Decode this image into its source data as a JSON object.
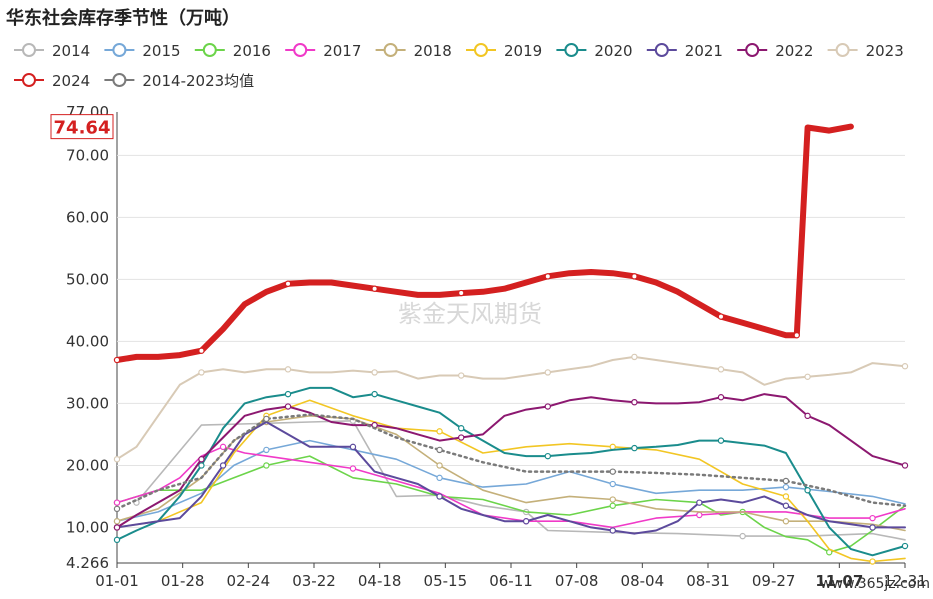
{
  "title": "华东社会库存季节性（万吨）",
  "watermark": "紫金天风期货",
  "site": "www.365jz.com",
  "chart_data": {
    "type": "line",
    "title": "华东社会库存季节性（万吨）",
    "x_ticks": [
      "01-01",
      "01-28",
      "02-24",
      "03-22",
      "04-18",
      "05-15",
      "06-11",
      "07-08",
      "08-04",
      "08-31",
      "09-27",
      "11-07",
      "12-31"
    ],
    "y_ticks": [
      "4.266",
      "10.00",
      "20.00",
      "30.00",
      "40.00",
      "50.00",
      "60.00",
      "70.00"
    ],
    "y_top_clipped_label": "77.00",
    "ylim": [
      4.266,
      77.0
    ],
    "tooltip": {
      "x_label": "11-07",
      "y_label": "74.64",
      "y_value": 74.64
    },
    "legend_position": "top",
    "grid": true,
    "series": [
      {
        "name": "2014",
        "color": "#b8b8b8",
        "width": 1.6,
        "x": [
          10,
          40,
          70,
          90,
          110,
          130,
          150,
          170,
          190,
          200,
          230,
          260,
          290,
          320,
          350,
          365
        ],
        "y": [
          14,
          26.5,
          26.8,
          27,
          27.2,
          15,
          15.2,
          13.5,
          12.5,
          9.5,
          9.2,
          9,
          8.6,
          8.6,
          9,
          8
        ]
      },
      {
        "name": "2015",
        "color": "#76a8d8",
        "width": 1.6,
        "x": [
          1,
          20,
          40,
          55,
          70,
          90,
          110,
          130,
          150,
          170,
          190,
          210,
          230,
          250,
          270,
          290,
          310,
          330,
          350,
          365
        ],
        "y": [
          11,
          12.5,
          15.5,
          20,
          22.5,
          24,
          22.5,
          21,
          18,
          16.5,
          17,
          19,
          17,
          15.5,
          16,
          16,
          16.5,
          15.8,
          15,
          13.8
        ]
      },
      {
        "name": "2016",
        "color": "#6cd44a",
        "width": 1.6,
        "x": [
          1,
          20,
          40,
          55,
          70,
          90,
          110,
          130,
          150,
          170,
          190,
          210,
          230,
          250,
          270,
          280,
          290,
          300,
          310,
          320,
          330,
          340,
          350,
          365
        ],
        "y": [
          14,
          16,
          16,
          18,
          20,
          21.5,
          18,
          17,
          15,
          14.5,
          12.5,
          12,
          13.5,
          14.5,
          14,
          12,
          12.5,
          10,
          8.5,
          8,
          6,
          7,
          9.5,
          13.5
        ]
      },
      {
        "name": "2017",
        "color": "#f03ac8",
        "width": 1.6,
        "x": [
          1,
          20,
          30,
          40,
          50,
          60,
          70,
          90,
          110,
          130,
          150,
          170,
          190,
          210,
          230,
          250,
          270,
          290,
          310,
          330,
          350,
          365
        ],
        "y": [
          14,
          16,
          18,
          21.5,
          23,
          22,
          21.5,
          20.5,
          19.5,
          17.5,
          15.5,
          12,
          11,
          11,
          10,
          11.5,
          12,
          12.5,
          12.5,
          11.5,
          11.5,
          13
        ]
      },
      {
        "name": "2018",
        "color": "#c4b07a",
        "width": 1.6,
        "x": [
          1,
          20,
          40,
          55,
          70,
          90,
          110,
          130,
          150,
          170,
          190,
          210,
          230,
          250,
          270,
          290,
          310,
          330,
          350,
          365
        ],
        "y": [
          11,
          13,
          18,
          24,
          27,
          28,
          27.5,
          25,
          20,
          16,
          14,
          15,
          14.5,
          13,
          12.5,
          12.5,
          11,
          11,
          10.5,
          9.5
        ]
      },
      {
        "name": "2019",
        "color": "#f2c624",
        "width": 1.6,
        "x": [
          1,
          20,
          40,
          55,
          70,
          90,
          110,
          130,
          150,
          170,
          190,
          210,
          230,
          250,
          270,
          290,
          310,
          320,
          330,
          340,
          350,
          365
        ],
        "y": [
          10,
          11,
          14,
          22,
          28,
          30.5,
          28,
          26,
          25.5,
          22,
          23,
          23.5,
          23,
          22.5,
          21,
          17,
          15,
          11,
          6.5,
          5,
          4.5,
          5
        ]
      },
      {
        "name": "2020",
        "color": "#1a8c8c",
        "width": 2,
        "x": [
          1,
          10,
          20,
          30,
          40,
          50,
          60,
          70,
          80,
          90,
          100,
          110,
          120,
          130,
          140,
          150,
          160,
          170,
          180,
          190,
          200,
          210,
          220,
          230,
          240,
          250,
          260,
          270,
          280,
          290,
          300,
          310,
          320,
          330,
          340,
          350,
          365
        ],
        "y": [
          8,
          9.5,
          11,
          15,
          20,
          26,
          30,
          31,
          31.5,
          32.5,
          32.5,
          31,
          31.5,
          30.5,
          29.5,
          28.5,
          26,
          24,
          22,
          21.5,
          21.5,
          21.8,
          22,
          22.5,
          22.8,
          23,
          23.3,
          24,
          24,
          23.6,
          23.2,
          22,
          16,
          10,
          6.5,
          5.5,
          7
        ]
      },
      {
        "name": "2021",
        "color": "#5c4a9c",
        "width": 2,
        "x": [
          1,
          20,
          30,
          40,
          50,
          60,
          70,
          90,
          110,
          120,
          130,
          140,
          150,
          160,
          170,
          180,
          190,
          200,
          210,
          220,
          230,
          240,
          250,
          260,
          270,
          280,
          290,
          300,
          310,
          320,
          330,
          340,
          350,
          365
        ],
        "y": [
          10,
          11,
          11.5,
          15,
          20,
          25,
          27,
          23,
          23,
          19,
          18,
          17,
          15,
          13,
          12,
          11,
          11,
          12,
          11,
          10,
          9.5,
          9,
          9.5,
          11,
          14,
          14.5,
          14,
          15,
          13.5,
          12,
          11,
          10.5,
          10,
          10
        ]
      },
      {
        "name": "2022",
        "color": "#8c1870",
        "width": 2,
        "x": [
          1,
          10,
          20,
          30,
          40,
          50,
          60,
          70,
          80,
          90,
          100,
          110,
          120,
          130,
          140,
          150,
          160,
          170,
          180,
          190,
          200,
          210,
          220,
          230,
          240,
          250,
          260,
          270,
          280,
          290,
          300,
          310,
          320,
          330,
          340,
          350,
          365
        ],
        "y": [
          10,
          12,
          14,
          16,
          21,
          24.5,
          28,
          29,
          29.5,
          28.5,
          27,
          26.5,
          26.5,
          26,
          25,
          24,
          24.5,
          25,
          28,
          29,
          29.5,
          30.5,
          31,
          30.5,
          30.2,
          30,
          30,
          30.2,
          31,
          30.5,
          31.5,
          31,
          28,
          26.5,
          24,
          21.5,
          20
        ]
      },
      {
        "name": "2023",
        "color": "#d8cab6",
        "width": 2,
        "x": [
          1,
          10,
          20,
          30,
          40,
          50,
          60,
          70,
          80,
          90,
          100,
          110,
          120,
          130,
          140,
          150,
          160,
          170,
          180,
          190,
          200,
          210,
          220,
          230,
          240,
          250,
          260,
          270,
          280,
          290,
          300,
          310,
          320,
          330,
          340,
          350,
          365
        ],
        "y": [
          21,
          23,
          28,
          33,
          35,
          35.5,
          35,
          35.5,
          35.5,
          35,
          35,
          35.3,
          35,
          35.2,
          34,
          34.5,
          34.5,
          34,
          34,
          34.5,
          35,
          35.5,
          36,
          37,
          37.5,
          37,
          36.5,
          36,
          35.5,
          35,
          33,
          34,
          34.3,
          34.6,
          35,
          36.5,
          36
        ]
      },
      {
        "name": "2024",
        "color": "#d42020",
        "width": 6,
        "x": [
          1,
          10,
          20,
          30,
          40,
          50,
          60,
          70,
          80,
          90,
          100,
          110,
          120,
          130,
          140,
          150,
          160,
          170,
          180,
          190,
          200,
          210,
          220,
          230,
          240,
          250,
          260,
          270,
          280,
          290,
          300,
          310,
          315,
          320,
          330,
          340
        ],
        "y": [
          37,
          37.5,
          37.5,
          37.8,
          38.5,
          42,
          46,
          48,
          49.3,
          49.5,
          49.5,
          49,
          48.5,
          48,
          47.5,
          47.5,
          47.8,
          48,
          48.5,
          49.5,
          50.5,
          51,
          51.2,
          51,
          50.5,
          49.5,
          48,
          46,
          44,
          43,
          42,
          41,
          41,
          74.5,
          74,
          74.64
        ]
      },
      {
        "name": "2014-2023均值",
        "color": "#7a7a7a",
        "width": 2.5,
        "dash": "2,4",
        "x": [
          1,
          20,
          40,
          55,
          70,
          90,
          110,
          130,
          150,
          170,
          190,
          210,
          230,
          250,
          270,
          290,
          310,
          330,
          350,
          365
        ],
        "y": [
          13,
          16,
          18,
          24,
          27.5,
          28.2,
          27.5,
          24.5,
          22.5,
          20.5,
          19,
          19,
          19,
          18.8,
          18.5,
          18,
          17.5,
          16,
          14,
          13.5
        ]
      }
    ]
  }
}
